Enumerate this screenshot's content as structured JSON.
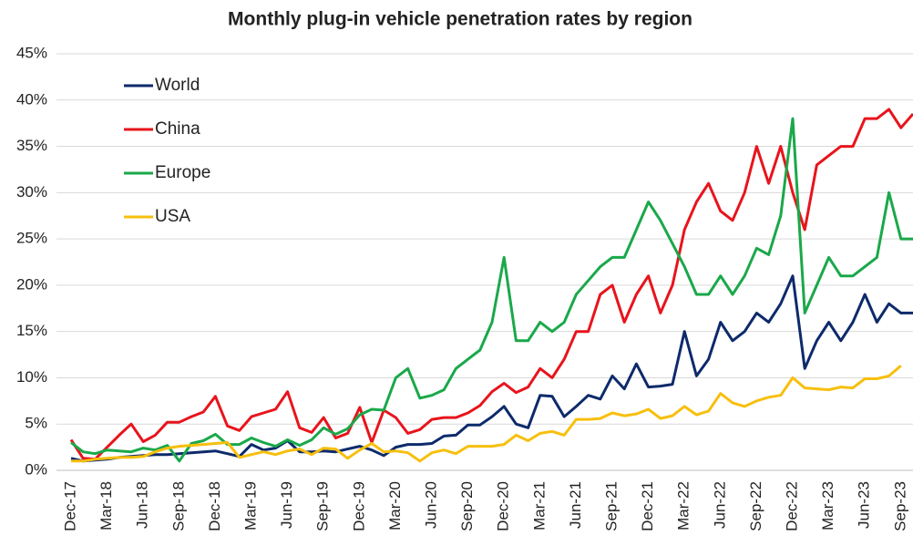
{
  "chart_data": {
    "type": "line",
    "title": "Monthly plug-in vehicle penetration rates by region",
    "categories": [
      "Dec-17",
      null,
      null,
      "Mar-18",
      null,
      null,
      "Jun-18",
      null,
      null,
      "Sep-18",
      null,
      null,
      "Dec-18",
      null,
      null,
      "Mar-19",
      null,
      null,
      "Jun-19",
      null,
      null,
      "Sep-19",
      null,
      null,
      "Dec-19",
      null,
      null,
      "Mar-20",
      null,
      null,
      "Jun-20",
      null,
      null,
      "Sep-20",
      null,
      null,
      "Dec-20",
      null,
      null,
      "Mar-21",
      null,
      null,
      "Jun-21",
      null,
      null,
      "Sep-21",
      null,
      null,
      "Dec-21",
      null,
      null,
      "Mar-22",
      null,
      null,
      "Jun-22",
      null,
      null,
      "Sep-22",
      null,
      null,
      "Dec-22",
      null,
      null,
      "Mar-23",
      null,
      null,
      "Jun-23",
      null,
      null,
      "Sep-23",
      null
    ],
    "series": [
      {
        "name": "World",
        "color": "#0d2a6b",
        "values": [
          1.3,
          1.0,
          1.1,
          1.2,
          1.4,
          1.5,
          1.6,
          1.7,
          1.7,
          1.8,
          1.9,
          2.0,
          2.1,
          1.8,
          1.5,
          2.8,
          2.2,
          2.4,
          3.2,
          2.0,
          2.0,
          2.1,
          2.0,
          2.3,
          2.6,
          2.2,
          1.6,
          2.5,
          2.8,
          2.8,
          2.9,
          3.7,
          3.8,
          4.9,
          4.9,
          5.8,
          6.9,
          5.0,
          4.6,
          8.1,
          8.0,
          5.8,
          6.9,
          8.1,
          7.7,
          10.2,
          8.8,
          11.5,
          9.0,
          9.1,
          9.3,
          15,
          10.2,
          12,
          16,
          14,
          15,
          17,
          16,
          18,
          21,
          11,
          14,
          16,
          14,
          16,
          19,
          16,
          18,
          17,
          17
        ]
      },
      {
        "name": "China",
        "color": "#e8141c",
        "values": [
          3.3,
          1.3,
          1.2,
          2.5,
          3.8,
          5.0,
          3.1,
          3.8,
          5.2,
          5.2,
          5.8,
          6.3,
          8.0,
          4.8,
          4.3,
          5.8,
          6.2,
          6.6,
          8.5,
          4.6,
          4.1,
          5.7,
          3.5,
          4.0,
          6.8,
          3.0,
          6.5,
          5.7,
          4.0,
          4.4,
          5.5,
          5.7,
          5.7,
          6.2,
          7.0,
          8.5,
          9.4,
          8.4,
          9.0,
          11,
          10,
          12,
          15,
          15,
          19,
          20,
          16,
          19,
          21,
          17,
          20,
          26,
          29,
          31,
          28,
          27,
          30,
          35,
          31,
          35,
          30,
          26,
          33,
          34,
          35,
          35,
          38,
          38,
          39,
          37,
          38.5
        ]
      },
      {
        "name": "Europe",
        "color": "#1aa84a",
        "values": [
          3.0,
          2.0,
          1.8,
          2.2,
          2.1,
          2.0,
          2.4,
          2.2,
          2.7,
          1.0,
          2.9,
          3.2,
          3.9,
          2.8,
          2.8,
          3.5,
          3.0,
          2.6,
          3.3,
          2.7,
          3.3,
          4.6,
          3.9,
          4.5,
          6.0,
          6.6,
          6.5,
          10,
          11,
          7.8,
          8.1,
          8.7,
          11,
          12,
          13,
          16,
          23,
          14,
          14,
          16,
          15,
          16,
          19,
          20.5,
          22,
          23,
          23,
          26,
          29,
          27,
          24.5,
          22,
          19,
          19,
          21,
          19,
          21,
          24,
          23.3,
          27.5,
          38,
          17,
          20,
          23,
          21,
          21,
          22,
          23,
          30,
          25,
          25
        ]
      },
      {
        "name": "USA",
        "color": "#f7bf0d",
        "values": [
          1.0,
          1.0,
          1.2,
          1.3,
          1.4,
          1.4,
          1.5,
          2.0,
          2.4,
          2.6,
          2.7,
          2.8,
          2.9,
          3.0,
          1.4,
          1.7,
          2.0,
          1.7,
          2.1,
          2.3,
          1.7,
          2.4,
          2.3,
          1.3,
          2.2,
          2.9,
          2.0,
          2.1,
          1.9,
          1.0,
          1.9,
          2.2,
          1.8,
          2.6,
          2.6,
          2.6,
          2.8,
          3.8,
          3.2,
          4.0,
          4.2,
          3.8,
          5.5,
          5.5,
          5.6,
          6.2,
          5.9,
          6.1,
          6.6,
          5.6,
          5.9,
          6.9,
          6.0,
          6.4,
          8.3,
          7.3,
          6.9,
          7.5,
          7.9,
          8.1,
          10,
          8.9,
          8.8,
          8.7,
          9.0,
          8.9,
          9.9,
          9.9,
          10.2,
          11.3,
          null
        ]
      }
    ],
    "ylim": [
      0,
      45
    ],
    "yticks": [
      {
        "value": 0,
        "label": "0%"
      },
      {
        "value": 5,
        "label": "5%"
      },
      {
        "value": 10,
        "label": "10%"
      },
      {
        "value": 15,
        "label": "15%"
      },
      {
        "value": 20,
        "label": "20%"
      },
      {
        "value": 25,
        "label": "25%"
      },
      {
        "value": 30,
        "label": "30%"
      },
      {
        "value": 35,
        "label": "35%"
      },
      {
        "value": 40,
        "label": "40%"
      },
      {
        "value": 45,
        "label": "45%"
      }
    ],
    "grid": true,
    "legend": "upper left"
  }
}
